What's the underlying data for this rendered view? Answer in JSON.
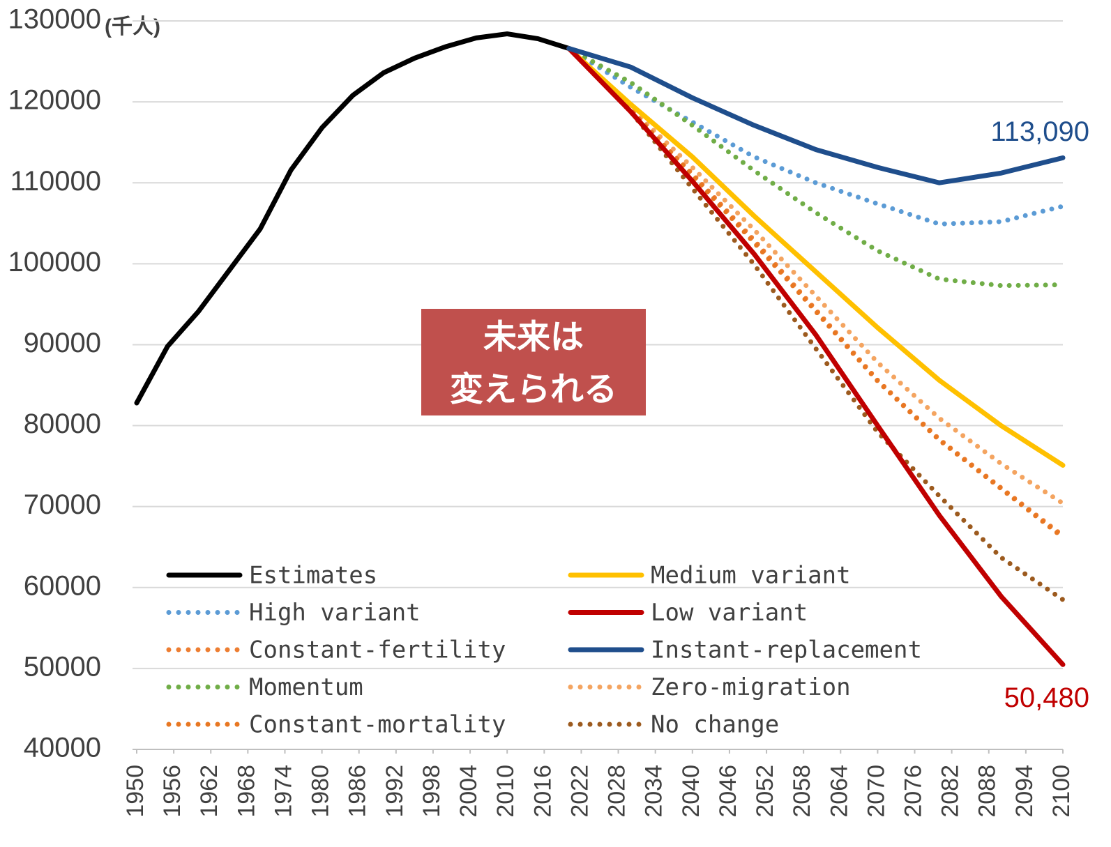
{
  "chart_data": {
    "type": "line",
    "y_label": "(千人)",
    "annotation": [
      "未来は",
      "変えられる"
    ],
    "annotation_color": "#c0504d",
    "x": [
      1950,
      1955,
      1960,
      1965,
      1970,
      1975,
      1980,
      1985,
      1990,
      1995,
      2000,
      2005,
      2010,
      2015,
      2020,
      2030,
      2040,
      2050,
      2060,
      2070,
      2080,
      2090,
      2100
    ],
    "xlim": [
      1950,
      2100
    ],
    "xticks": [
      1950,
      1956,
      1962,
      1968,
      1974,
      1980,
      1986,
      1992,
      1998,
      2004,
      2010,
      2016,
      2022,
      2028,
      2034,
      2040,
      2046,
      2052,
      2058,
      2064,
      2070,
      2076,
      2082,
      2088,
      2094,
      2100
    ],
    "ylim": [
      40000,
      130000
    ],
    "yticks": [
      40000,
      50000,
      60000,
      70000,
      80000,
      90000,
      100000,
      110000,
      120000,
      130000
    ],
    "grid": true,
    "series": [
      {
        "name": "Estimates",
        "color": "#000000",
        "style": "solid",
        "values": [
          82800,
          89800,
          94100,
          99200,
          104300,
          111600,
          116800,
          120800,
          123600,
          125400,
          126800,
          127900,
          128400,
          127800,
          126600,
          null,
          null,
          null,
          null,
          null,
          null,
          null,
          null
        ]
      },
      {
        "name": "Medium variant",
        "color": "#ffc000",
        "style": "solid",
        "values": [
          null,
          null,
          null,
          null,
          null,
          null,
          null,
          null,
          null,
          null,
          null,
          null,
          null,
          null,
          126600,
          119700,
          113200,
          105900,
          99000,
          92100,
          85600,
          80000,
          75100
        ]
      },
      {
        "name": "High variant",
        "color": "#5b9bd5",
        "style": "dotted",
        "values": [
          null,
          null,
          null,
          null,
          null,
          null,
          null,
          null,
          null,
          null,
          null,
          null,
          null,
          null,
          126600,
          121800,
          117500,
          113200,
          110000,
          107400,
          104900,
          105200,
          107100
        ]
      },
      {
        "name": "Low variant",
        "color": "#c00000",
        "style": "solid",
        "values": [
          null,
          null,
          null,
          null,
          null,
          null,
          null,
          null,
          null,
          null,
          null,
          null,
          null,
          null,
          126600,
          118800,
          110200,
          101200,
          91200,
          80000,
          68900,
          58900,
          50480
        ],
        "value_labels": [
          null,
          null,
          null,
          null,
          null,
          null,
          null,
          null,
          null,
          null,
          null,
          null,
          null,
          null,
          null,
          null,
          null,
          null,
          null,
          null,
          null,
          null,
          "50,480"
        ]
      },
      {
        "name": "Constant-fertility",
        "color": "#ed7d31",
        "style": "dotted",
        "values": [
          null,
          null,
          null,
          null,
          null,
          null,
          null,
          null,
          null,
          null,
          null,
          null,
          null,
          null,
          126600,
          119000,
          111100,
          102900,
          94300,
          85600,
          78300,
          72300,
          66400
        ]
      },
      {
        "name": "Instant-replacement",
        "color": "#1f4e8c",
        "style": "solid",
        "values": [
          null,
          null,
          null,
          null,
          null,
          null,
          null,
          null,
          null,
          null,
          null,
          null,
          null,
          null,
          126600,
          124300,
          120500,
          117100,
          114100,
          111900,
          110000,
          111200,
          113090
        ],
        "value_labels": [
          null,
          null,
          null,
          null,
          null,
          null,
          null,
          null,
          null,
          null,
          null,
          null,
          null,
          null,
          null,
          null,
          null,
          null,
          null,
          null,
          null,
          null,
          "113,090"
        ]
      },
      {
        "name": "Momentum",
        "color": "#70ad47",
        "style": "dotted",
        "values": [
          null,
          null,
          null,
          null,
          null,
          null,
          null,
          null,
          null,
          null,
          null,
          null,
          null,
          null,
          126600,
          122400,
          117100,
          111500,
          106300,
          101600,
          98100,
          97300,
          97400
        ]
      },
      {
        "name": "Zero-migration",
        "color": "#f4a460",
        "style": "dotted",
        "values": [
          null,
          null,
          null,
          null,
          null,
          null,
          null,
          null,
          null,
          null,
          null,
          null,
          null,
          null,
          126600,
          119200,
          111900,
          104200,
          96000,
          87800,
          80900,
          75300,
          70400
        ]
      },
      {
        "name": "Constant-mortality",
        "color": "#e87722",
        "style": "dotted",
        "values": [
          null,
          null,
          null,
          null,
          null,
          null,
          null,
          null,
          null,
          null,
          null,
          null,
          null,
          null,
          126600,
          119000,
          110900,
          102600,
          94100,
          85500,
          78200,
          72200,
          66200
        ]
      },
      {
        "name": "No change",
        "color": "#9c5a1e",
        "style": "dotted",
        "values": [
          null,
          null,
          null,
          null,
          null,
          null,
          null,
          null,
          null,
          null,
          null,
          null,
          null,
          null,
          126600,
          118800,
          109300,
          99900,
          89500,
          79200,
          71300,
          63700,
          58500
        ]
      }
    ]
  }
}
